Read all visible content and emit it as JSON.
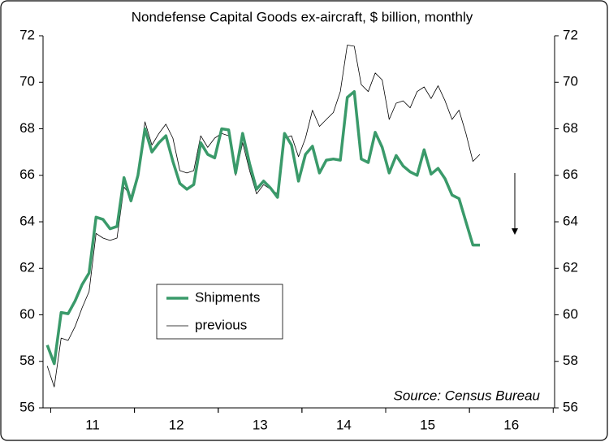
{
  "chart_data": {
    "type": "line",
    "title": "Nondefense Capital Goods ex-aircraft, $ billion, monthly",
    "annotation": "Source: Census Bureau",
    "x": [
      0,
      1,
      2,
      3,
      4,
      5,
      6,
      7,
      8,
      9,
      10,
      11,
      12,
      13,
      14,
      15,
      16,
      17,
      18,
      19,
      20,
      21,
      22,
      23,
      24,
      25,
      26,
      27,
      28,
      29,
      30,
      31,
      32,
      33,
      34,
      35,
      36,
      37,
      38,
      39,
      40,
      41,
      42,
      43,
      44,
      45,
      46,
      47,
      48,
      49,
      50,
      51,
      52,
      53,
      54,
      55,
      56,
      57,
      58,
      59,
      60,
      61,
      62
    ],
    "xlim": [
      -0.6,
      72.7
    ],
    "xticks": [
      {
        "value": 6.5,
        "label": "11"
      },
      {
        "value": 18.5,
        "label": "12"
      },
      {
        "value": 30.5,
        "label": "13"
      },
      {
        "value": 42.5,
        "label": "14"
      },
      {
        "value": 54.5,
        "label": "15"
      },
      {
        "value": 66.5,
        "label": "16"
      }
    ],
    "ylim": [
      56,
      72
    ],
    "yticks": [
      56,
      58,
      60,
      62,
      64,
      66,
      68,
      70,
      72
    ],
    "y2lim": [
      56,
      72
    ],
    "y2ticks": [
      56,
      58,
      60,
      62,
      64,
      66,
      68,
      70,
      72
    ],
    "legend": "center-left",
    "series": [
      {
        "name": "Shipments",
        "color": "#3a9a6a",
        "width": 3.5,
        "values": [
          58.7,
          57.9,
          60.1,
          60.05,
          60.6,
          61.3,
          61.8,
          64.2,
          64.1,
          63.7,
          63.8,
          65.9,
          64.9,
          66.0,
          68.0,
          67.0,
          67.4,
          67.7,
          66.6,
          65.65,
          65.4,
          65.6,
          67.4,
          66.9,
          66.75,
          68.0,
          67.95,
          66.1,
          67.8,
          66.5,
          65.4,
          65.75,
          65.45,
          65.05,
          67.8,
          67.3,
          65.75,
          66.9,
          67.25,
          66.1,
          66.65,
          66.7,
          66.65,
          69.35,
          69.6,
          66.7,
          66.55,
          67.85,
          67.2,
          66.1,
          66.85,
          66.4,
          66.15,
          66.0,
          67.1,
          66.05,
          66.3,
          65.85,
          65.15,
          65.0,
          64.0,
          63.0,
          63.0
        ]
      },
      {
        "name": "previous",
        "color": "#000000",
        "width": 0.8,
        "values": [
          57.8,
          56.9,
          59.0,
          58.9,
          59.5,
          60.3,
          61.0,
          63.5,
          63.3,
          63.2,
          63.3,
          65.5,
          65.1,
          66.1,
          68.3,
          67.3,
          67.8,
          68.2,
          67.6,
          66.2,
          66.1,
          66.2,
          67.7,
          67.2,
          67.6,
          67.8,
          67.7,
          66.0,
          67.4,
          66.2,
          65.2,
          65.6,
          65.4,
          65.2,
          67.6,
          67.7,
          66.8,
          67.6,
          68.8,
          68.1,
          68.4,
          68.7,
          69.6,
          71.6,
          71.55,
          69.9,
          69.6,
          70.4,
          70.1,
          68.4,
          69.1,
          69.2,
          68.9,
          69.6,
          69.8,
          69.3,
          69.85,
          69.2,
          68.4,
          68.8,
          67.8,
          66.6,
          66.9
        ]
      }
    ]
  }
}
